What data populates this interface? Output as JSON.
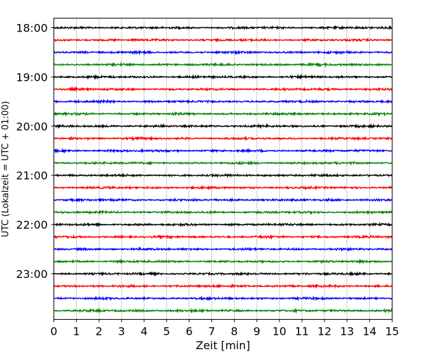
{
  "chart_data": {
    "type": "line",
    "xlabel": "Zeit  [min]",
    "ylabel": "UTC (Lokalzeit = UTC + 01:00)",
    "xlim": [
      0,
      15
    ],
    "x_ticks": [
      0,
      1,
      2,
      3,
      4,
      5,
      6,
      7,
      8,
      9,
      10,
      11,
      12,
      13,
      14,
      15
    ],
    "y_ticks": [
      "18:00",
      "19:00",
      "20:00",
      "21:00",
      "22:00",
      "23:00"
    ],
    "grid": "vertical dotted",
    "trace_interval_minutes": 15,
    "traces": [
      {
        "start": "18:00",
        "color": "#000000",
        "amplitude": 0.1
      },
      {
        "start": "18:15",
        "color": "#ff0000",
        "amplitude": 0.1
      },
      {
        "start": "18:30",
        "color": "#0000ff",
        "amplitude": 0.1
      },
      {
        "start": "18:45",
        "color": "#008000",
        "amplitude": 0.1
      },
      {
        "start": "19:00",
        "color": "#000000",
        "amplitude": 0.1
      },
      {
        "start": "19:15",
        "color": "#ff0000",
        "amplitude": 0.1
      },
      {
        "start": "19:30",
        "color": "#0000ff",
        "amplitude": 0.1
      },
      {
        "start": "19:45",
        "color": "#008000",
        "amplitude": 0.1
      },
      {
        "start": "20:00",
        "color": "#000000",
        "amplitude": 0.1
      },
      {
        "start": "20:15",
        "color": "#ff0000",
        "amplitude": 0.1
      },
      {
        "start": "20:30",
        "color": "#0000ff",
        "amplitude": 0.1
      },
      {
        "start": "20:45",
        "color": "#008000",
        "amplitude": 0.1
      },
      {
        "start": "21:00",
        "color": "#000000",
        "amplitude": 0.1
      },
      {
        "start": "21:15",
        "color": "#ff0000",
        "amplitude": 0.1
      },
      {
        "start": "21:30",
        "color": "#0000ff",
        "amplitude": 0.1
      },
      {
        "start": "21:45",
        "color": "#008000",
        "amplitude": 0.1
      },
      {
        "start": "22:00",
        "color": "#000000",
        "amplitude": 0.1
      },
      {
        "start": "22:15",
        "color": "#ff0000",
        "amplitude": 0.1
      },
      {
        "start": "22:30",
        "color": "#0000ff",
        "amplitude": 0.1
      },
      {
        "start": "22:45",
        "color": "#008000",
        "amplitude": 0.1
      },
      {
        "start": "23:00",
        "color": "#000000",
        "amplitude": 0.1
      },
      {
        "start": "23:15",
        "color": "#ff0000",
        "amplitude": 0.1
      },
      {
        "start": "23:30",
        "color": "#0000ff",
        "amplitude": 0.1
      },
      {
        "start": "23:45",
        "color": "#008000",
        "amplitude": 0.1
      }
    ]
  }
}
